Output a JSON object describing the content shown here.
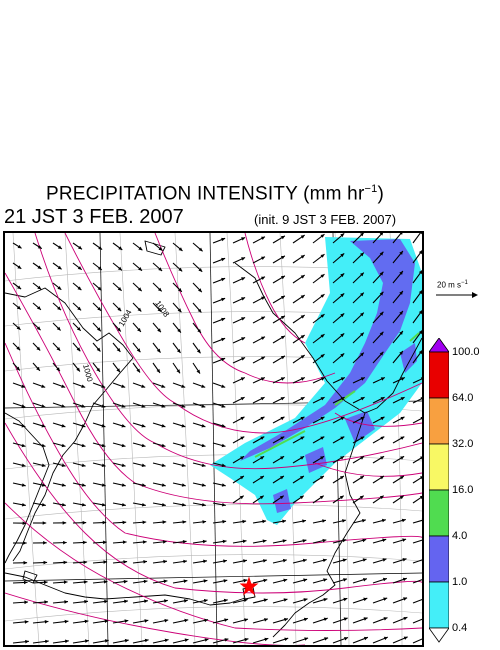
{
  "title": {
    "main": "PRECIPITATION INTENSITY (mm hr",
    "unit_exp": "−1",
    "close": ")"
  },
  "subtitle": {
    "valid_time": "21 JST 3 FEB. 2007",
    "init_time": "(init. 9 JST 3 FEB. 2007)"
  },
  "reference_vector": {
    "label": "20 m s",
    "unit_exp": "−1"
  },
  "isobar_labels": [
    "1008",
    "1004",
    "1000"
  ],
  "colorbar": {
    "levels": [
      "0.4",
      "1.0",
      "4.0",
      "16.0",
      "32.0",
      "64.0",
      "100.0"
    ],
    "colors": [
      "#ffffff",
      "#44eef8",
      "#6464f0",
      "#50dc50",
      "#f8f864",
      "#f8a040",
      "#e80000",
      "#a000f0"
    ]
  },
  "colors": {
    "isobar": "#cc0077",
    "coast": "#000000",
    "grid": "#b8b8b8",
    "wind_vector": "#000000",
    "station_marker": "#ff0000"
  }
}
